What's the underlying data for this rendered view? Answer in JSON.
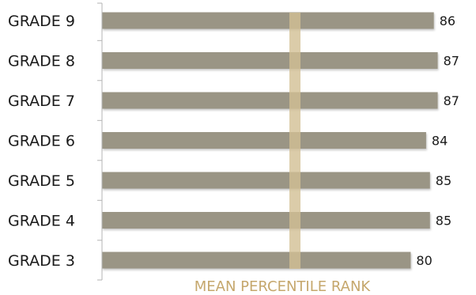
{
  "chart_data": {
    "type": "bar",
    "orientation": "horizontal",
    "categories": [
      "GRADE 9",
      "GRADE 8",
      "GRADE 7",
      "GRADE 6",
      "GRADE 5",
      "GRADE 4",
      "GRADE 3"
    ],
    "values": [
      86,
      87,
      87,
      84,
      85,
      85,
      80
    ],
    "xlabel": "MEAN PERCENTILE RANK",
    "xlim": [
      0,
      100
    ],
    "reference_line": {
      "value": 50
    },
    "colors": {
      "bar": "#9a9585",
      "reference_line": "#d2bf94",
      "axis_title": "#c5a76c",
      "axis": "#b3b3b3"
    },
    "grid": false,
    "legend": "none"
  }
}
